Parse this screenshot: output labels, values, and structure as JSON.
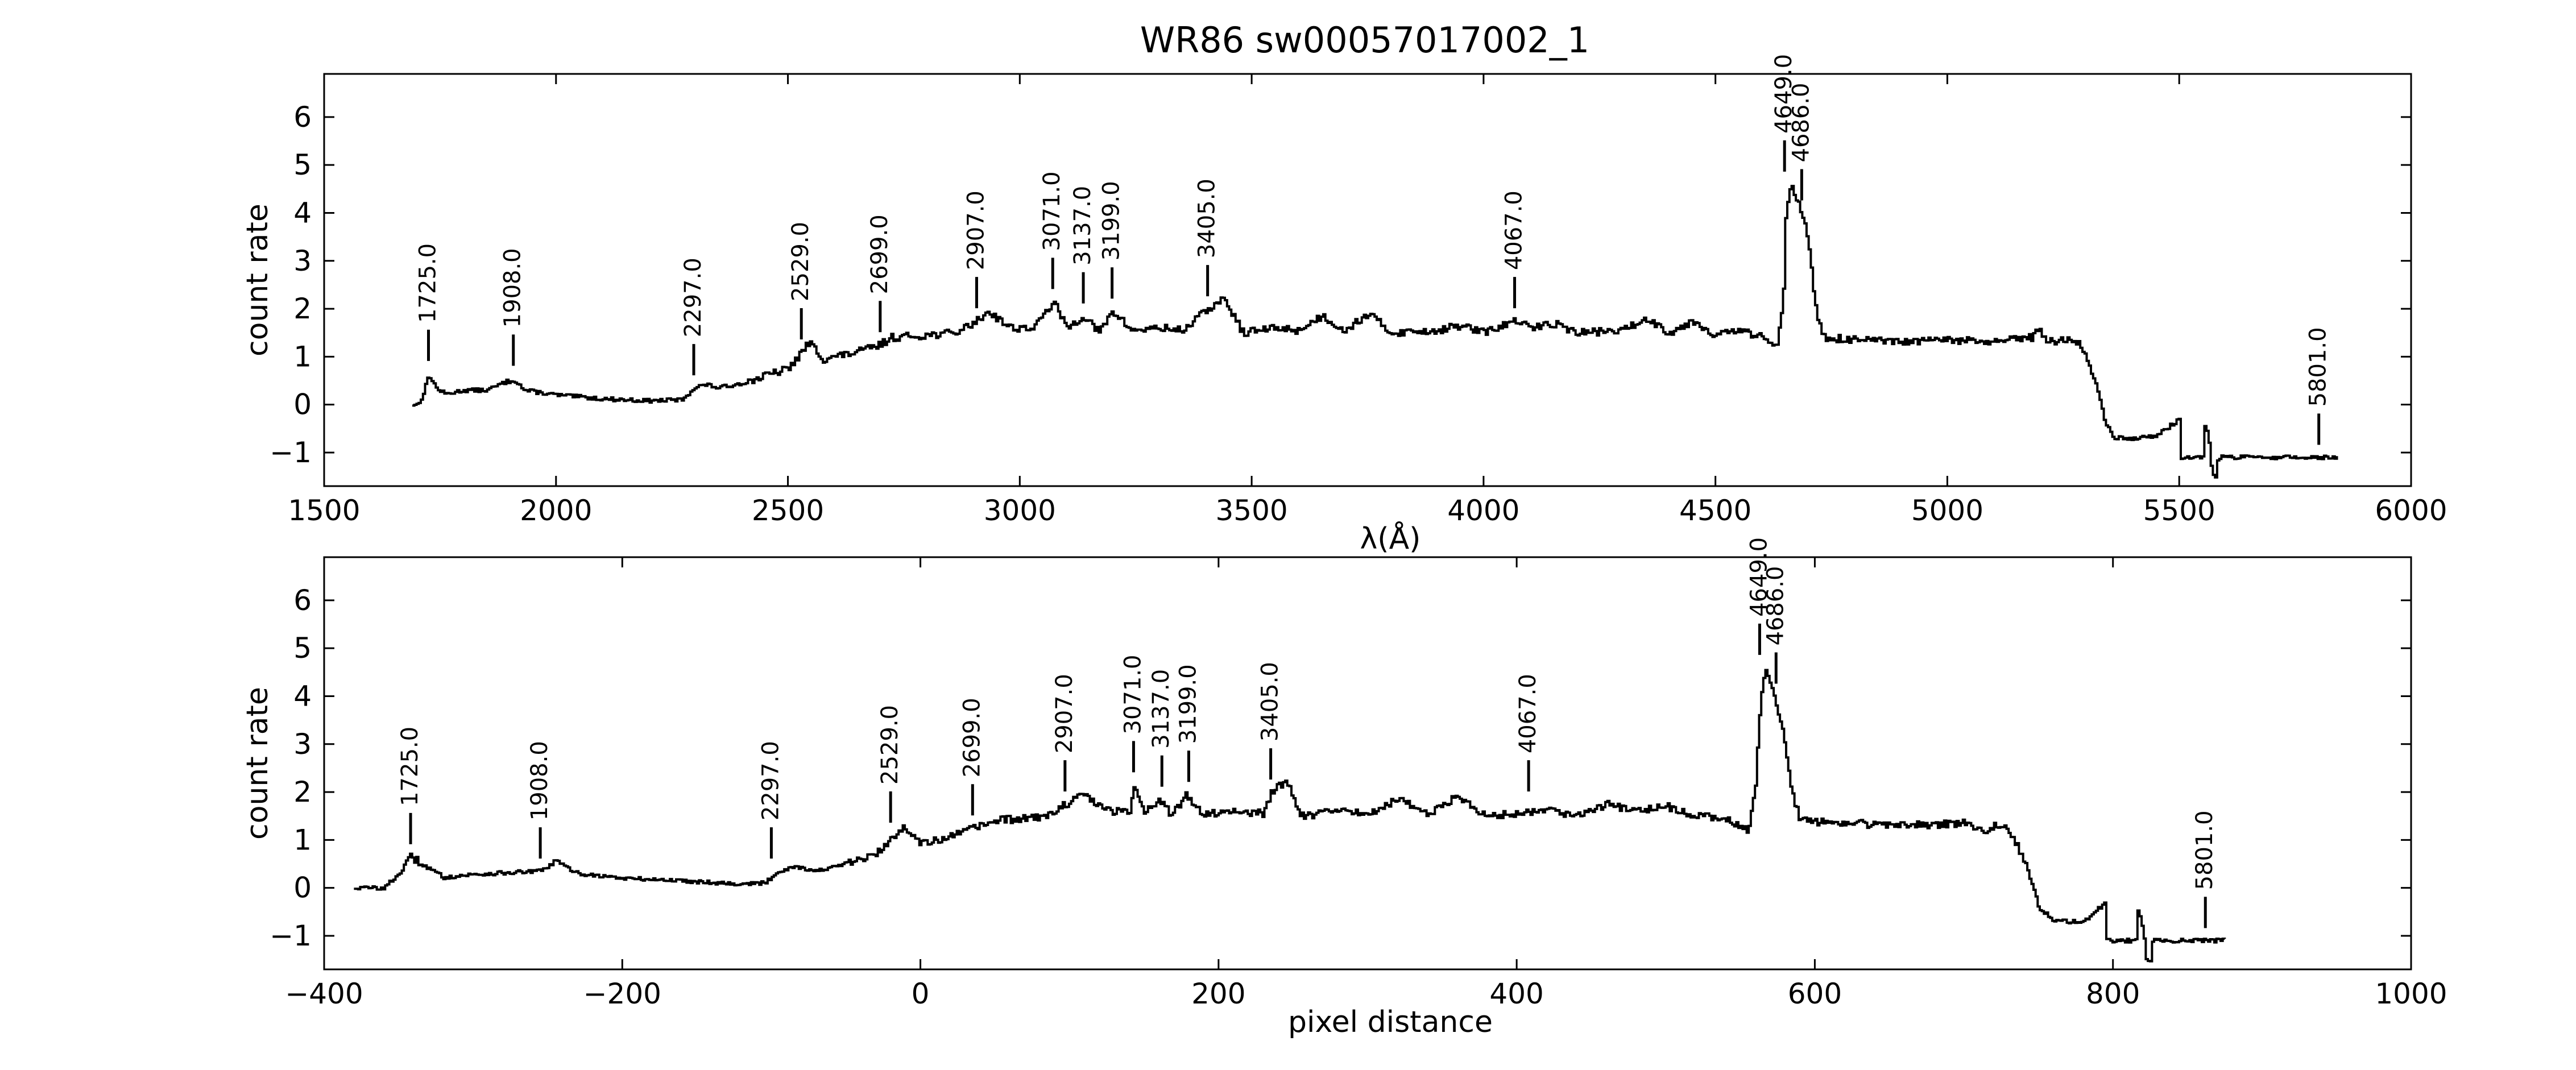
{
  "figure": {
    "title": "WR86  sw00057017002_1"
  },
  "chart_data": [
    {
      "type": "line",
      "panel": "top",
      "xlabel": "λ(Å)",
      "ylabel": "count rate",
      "xlim": [
        1500,
        6000
      ],
      "ylim": [
        -1.7,
        6.9
      ],
      "xticks": [
        1500,
        2000,
        2500,
        3000,
        3500,
        4000,
        4500,
        5000,
        5500,
        6000
      ],
      "yticks": [
        -1,
        0,
        1,
        2,
        3,
        4,
        5,
        6
      ],
      "grid": false,
      "line_color": "#000000",
      "anchors": [
        [
          1690,
          0.0
        ],
        [
          1700,
          0.0
        ],
        [
          1712,
          0.2
        ],
        [
          1725,
          0.65
        ],
        [
          1740,
          0.35
        ],
        [
          1760,
          0.22
        ],
        [
          1800,
          0.3
        ],
        [
          1850,
          0.3
        ],
        [
          1908,
          0.55
        ],
        [
          1930,
          0.3
        ],
        [
          2000,
          0.2
        ],
        [
          2100,
          0.12
        ],
        [
          2200,
          0.08
        ],
        [
          2270,
          0.1
        ],
        [
          2297,
          0.35
        ],
        [
          2320,
          0.42
        ],
        [
          2350,
          0.35
        ],
        [
          2400,
          0.45
        ],
        [
          2450,
          0.6
        ],
        [
          2500,
          0.75
        ],
        [
          2529,
          1.1
        ],
        [
          2545,
          1.3
        ],
        [
          2575,
          0.95
        ],
        [
          2600,
          1.0
        ],
        [
          2650,
          1.1
        ],
        [
          2699,
          1.25
        ],
        [
          2720,
          1.4
        ],
        [
          2800,
          1.45
        ],
        [
          2860,
          1.5
        ],
        [
          2907,
          1.75
        ],
        [
          2930,
          1.95
        ],
        [
          2980,
          1.6
        ],
        [
          3030,
          1.6
        ],
        [
          3071,
          2.15
        ],
        [
          3100,
          1.6
        ],
        [
          3137,
          1.85
        ],
        [
          3170,
          1.5
        ],
        [
          3199,
          1.95
        ],
        [
          3240,
          1.55
        ],
        [
          3300,
          1.6
        ],
        [
          3350,
          1.55
        ],
        [
          3405,
          2.0
        ],
        [
          3440,
          2.2
        ],
        [
          3480,
          1.5
        ],
        [
          3550,
          1.6
        ],
        [
          3600,
          1.55
        ],
        [
          3650,
          1.85
        ],
        [
          3700,
          1.55
        ],
        [
          3750,
          1.9
        ],
        [
          3800,
          1.5
        ],
        [
          3900,
          1.55
        ],
        [
          3950,
          1.65
        ],
        [
          4000,
          1.5
        ],
        [
          4067,
          1.75
        ],
        [
          4100,
          1.6
        ],
        [
          4150,
          1.7
        ],
        [
          4200,
          1.5
        ],
        [
          4300,
          1.55
        ],
        [
          4350,
          1.8
        ],
        [
          4400,
          1.5
        ],
        [
          4450,
          1.75
        ],
        [
          4500,
          1.45
        ],
        [
          4550,
          1.55
        ],
        [
          4600,
          1.4
        ],
        [
          4630,
          1.2
        ],
        [
          4645,
          2.2
        ],
        [
          4649,
          3.8
        ],
        [
          4660,
          4.6
        ],
        [
          4675,
          4.3
        ],
        [
          4686,
          4.0
        ],
        [
          4700,
          3.3
        ],
        [
          4715,
          2.0
        ],
        [
          4730,
          1.4
        ],
        [
          4800,
          1.35
        ],
        [
          4900,
          1.3
        ],
        [
          5000,
          1.35
        ],
        [
          5100,
          1.3
        ],
        [
          5180,
          1.4
        ],
        [
          5200,
          1.6
        ],
        [
          5210,
          1.3
        ],
        [
          5250,
          1.35
        ],
        [
          5280,
          1.3
        ],
        [
          5300,
          1.0
        ],
        [
          5320,
          0.4
        ],
        [
          5340,
          -0.4
        ],
        [
          5360,
          -0.7
        ],
        [
          5400,
          -0.7
        ],
        [
          5450,
          -0.65
        ],
        [
          5500,
          -0.3
        ],
        [
          5500,
          -1.1
        ],
        [
          5550,
          -1.1
        ],
        [
          5552,
          -0.4
        ],
        [
          5560,
          -0.6
        ],
        [
          5565,
          -0.9
        ],
        [
          5570,
          -1.5
        ],
        [
          5580,
          -1.5
        ],
        [
          5582,
          -1.1
        ],
        [
          5840,
          -1.1
        ]
      ],
      "annotations": [
        {
          "x": 1725,
          "y": 0.65,
          "label": "1725.0"
        },
        {
          "x": 1908,
          "y": 0.55,
          "label": "1908.0"
        },
        {
          "x": 2297,
          "y": 0.35,
          "label": "2297.0"
        },
        {
          "x": 2529,
          "y": 1.1,
          "label": "2529.0"
        },
        {
          "x": 2699,
          "y": 1.25,
          "label": "2699.0"
        },
        {
          "x": 2907,
          "y": 1.75,
          "label": "2907.0"
        },
        {
          "x": 3071,
          "y": 2.15,
          "label": "3071.0"
        },
        {
          "x": 3137,
          "y": 1.85,
          "label": "3137.0"
        },
        {
          "x": 3199,
          "y": 1.95,
          "label": "3199.0"
        },
        {
          "x": 3405,
          "y": 2.0,
          "label": "3405.0"
        },
        {
          "x": 4067,
          "y": 1.75,
          "label": "4067.0"
        },
        {
          "x": 4649,
          "y": 4.6,
          "label": "4649.0"
        },
        {
          "x": 4686,
          "y": 4.0,
          "label": "4686.0"
        },
        {
          "x": 5801,
          "y": -1.1,
          "label": "5801.0"
        }
      ]
    },
    {
      "type": "line",
      "panel": "bottom",
      "xlabel": "pixel distance",
      "ylabel": "count rate",
      "xlim": [
        -400,
        1000
      ],
      "ylim": [
        -1.7,
        6.9
      ],
      "xticks": [
        -400,
        -200,
        0,
        200,
        400,
        600,
        800,
        1000
      ],
      "yticks": [
        -1,
        0,
        1,
        2,
        3,
        4,
        5,
        6
      ],
      "grid": false,
      "line_color": "#000000",
      "anchors": [
        [
          -380,
          0.0
        ],
        [
          -360,
          0.0
        ],
        [
          -350,
          0.3
        ],
        [
          -342,
          0.65
        ],
        [
          -330,
          0.4
        ],
        [
          -320,
          0.22
        ],
        [
          -300,
          0.28
        ],
        [
          -255,
          0.35
        ],
        [
          -245,
          0.55
        ],
        [
          -230,
          0.3
        ],
        [
          -200,
          0.2
        ],
        [
          -160,
          0.15
        ],
        [
          -120,
          0.08
        ],
        [
          -105,
          0.1
        ],
        [
          -95,
          0.35
        ],
        [
          -85,
          0.45
        ],
        [
          -70,
          0.35
        ],
        [
          -50,
          0.5
        ],
        [
          -30,
          0.7
        ],
        [
          -20,
          1.0
        ],
        [
          -12,
          1.3
        ],
        [
          0,
          0.95
        ],
        [
          15,
          1.0
        ],
        [
          35,
          1.25
        ],
        [
          50,
          1.4
        ],
        [
          70,
          1.45
        ],
        [
          85,
          1.5
        ],
        [
          97,
          1.75
        ],
        [
          110,
          1.95
        ],
        [
          125,
          1.6
        ],
        [
          140,
          1.6
        ],
        [
          143,
          2.15
        ],
        [
          150,
          1.6
        ],
        [
          160,
          1.85
        ],
        [
          168,
          1.5
        ],
        [
          178,
          1.95
        ],
        [
          188,
          1.55
        ],
        [
          210,
          1.6
        ],
        [
          230,
          1.55
        ],
        [
          235,
          2.0
        ],
        [
          245,
          2.25
        ],
        [
          255,
          1.5
        ],
        [
          280,
          1.6
        ],
        [
          300,
          1.55
        ],
        [
          320,
          1.85
        ],
        [
          340,
          1.55
        ],
        [
          360,
          1.9
        ],
        [
          380,
          1.5
        ],
        [
          400,
          1.55
        ],
        [
          420,
          1.65
        ],
        [
          440,
          1.5
        ],
        [
          460,
          1.75
        ],
        [
          480,
          1.6
        ],
        [
          500,
          1.7
        ],
        [
          520,
          1.5
        ],
        [
          540,
          1.45
        ],
        [
          555,
          1.2
        ],
        [
          560,
          2.2
        ],
        [
          563,
          3.8
        ],
        [
          566,
          4.6
        ],
        [
          570,
          4.3
        ],
        [
          572,
          4.0
        ],
        [
          578,
          3.3
        ],
        [
          584,
          2.0
        ],
        [
          590,
          1.4
        ],
        [
          620,
          1.35
        ],
        [
          660,
          1.3
        ],
        [
          700,
          1.35
        ],
        [
          715,
          1.2
        ],
        [
          725,
          1.35
        ],
        [
          730,
          1.2
        ],
        [
          740,
          0.6
        ],
        [
          750,
          -0.4
        ],
        [
          760,
          -0.7
        ],
        [
          780,
          -0.7
        ],
        [
          795,
          -0.3
        ],
        [
          795,
          -1.1
        ],
        [
          815,
          -1.1
        ],
        [
          816,
          -0.4
        ],
        [
          818,
          -0.6
        ],
        [
          820,
          -0.9
        ],
        [
          822,
          -1.5
        ],
        [
          825,
          -1.5
        ],
        [
          826,
          -1.1
        ],
        [
          875,
          -1.1
        ]
      ],
      "annotations": [
        {
          "x": -342,
          "y": 0.65,
          "label": "1725.0"
        },
        {
          "x": -255,
          "y": 0.35,
          "label": "1908.0"
        },
        {
          "x": -100,
          "y": 0.35,
          "label": "2297.0"
        },
        {
          "x": -20,
          "y": 1.1,
          "label": "2529.0"
        },
        {
          "x": 35,
          "y": 1.25,
          "label": "2699.0"
        },
        {
          "x": 97,
          "y": 1.75,
          "label": "2907.0"
        },
        {
          "x": 143,
          "y": 2.15,
          "label": "3071.0"
        },
        {
          "x": 162,
          "y": 1.85,
          "label": "3137.0"
        },
        {
          "x": 180,
          "y": 1.95,
          "label": "3199.0"
        },
        {
          "x": 235,
          "y": 2.0,
          "label": "3405.0"
        },
        {
          "x": 408,
          "y": 1.75,
          "label": "4067.0"
        },
        {
          "x": 563,
          "y": 4.6,
          "label": "4649.0"
        },
        {
          "x": 574,
          "y": 4.0,
          "label": "4686.0"
        },
        {
          "x": 862,
          "y": -1.1,
          "label": "5801.0"
        }
      ]
    }
  ]
}
